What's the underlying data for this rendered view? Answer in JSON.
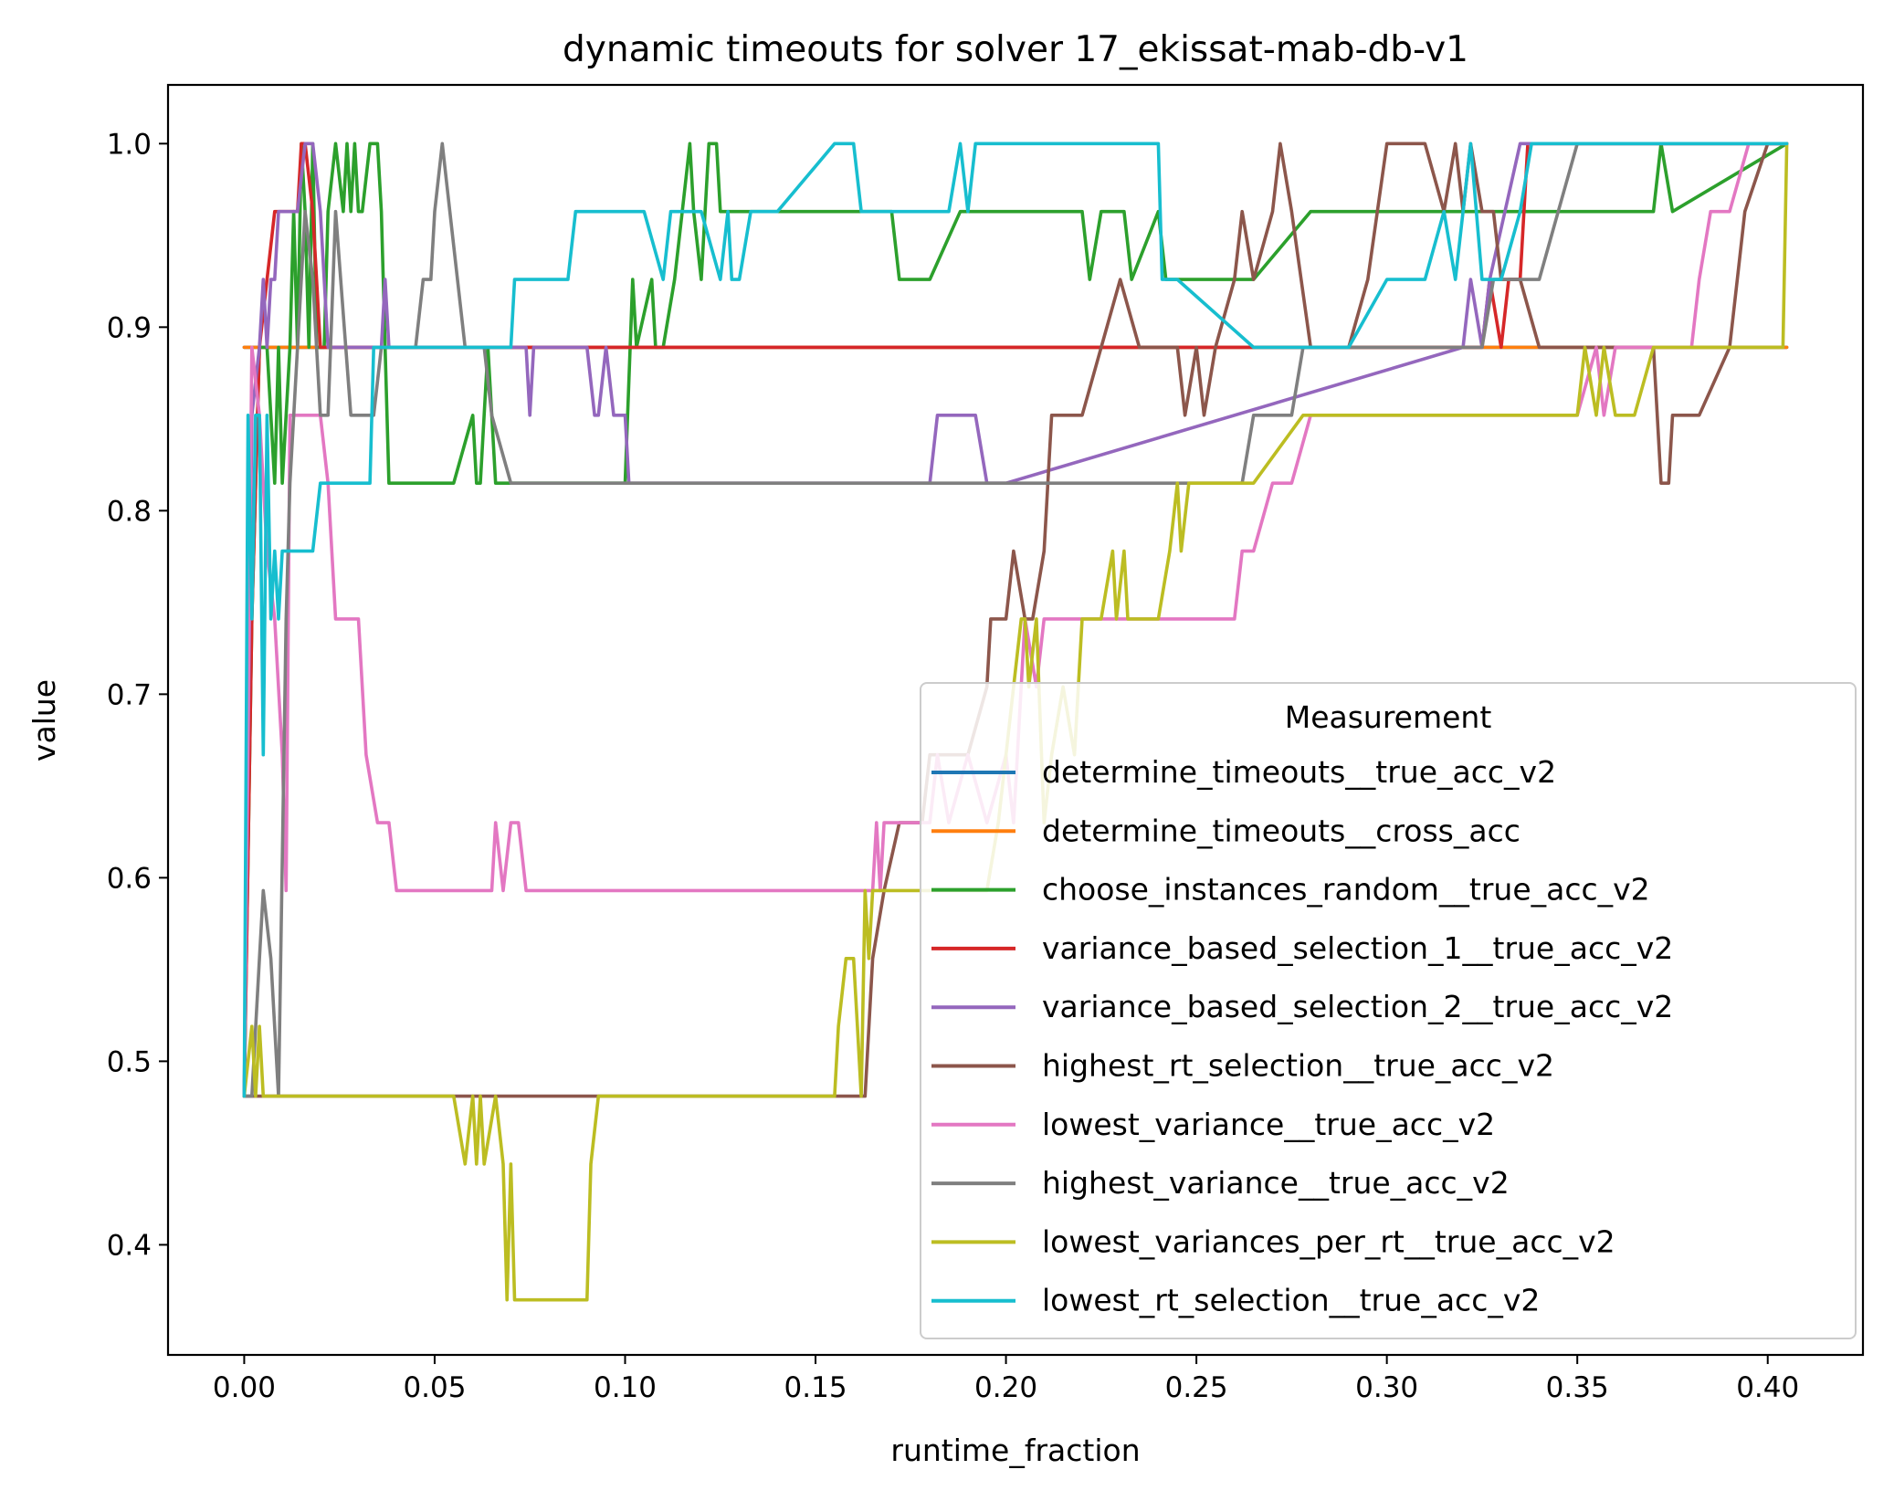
{
  "chart_data": {
    "type": "line",
    "title": "dynamic timeouts for solver 17_ekissat-mab-db-v1",
    "xlabel": "runtime_fraction",
    "ylabel": "value",
    "xlim": [
      -0.02,
      0.425
    ],
    "ylim": [
      0.34,
      1.032
    ],
    "x_ticks": [
      0.0,
      0.05,
      0.1,
      0.15,
      0.2,
      0.25,
      0.3,
      0.35,
      0.4
    ],
    "x_tick_labels": [
      "0.00",
      "0.05",
      "0.10",
      "0.15",
      "0.20",
      "0.25",
      "0.30",
      "0.35",
      "0.40"
    ],
    "y_ticks": [
      0.4,
      0.5,
      0.6,
      0.7,
      0.8,
      0.9,
      1.0
    ],
    "y_tick_labels": [
      "0.4",
      "0.5",
      "0.6",
      "0.7",
      "0.8",
      "0.9",
      "1.0"
    ],
    "grid": false,
    "legend": {
      "title": "Measurement",
      "placement": "lower-right"
    },
    "series": [
      {
        "name": "determine_timeouts__true_acc_v2",
        "color": "#1f77b4",
        "x": [
          0.0,
          0.405
        ],
        "y": [
          0.889,
          0.889
        ]
      },
      {
        "name": "determine_timeouts__cross_acc",
        "color": "#ff7f0e",
        "x": [
          0.0,
          0.405
        ],
        "y": [
          0.889,
          0.889
        ]
      },
      {
        "name": "choose_instances_random__true_acc_v2",
        "color": "#2ca02c",
        "x": [
          0.0,
          0.002,
          0.004,
          0.006,
          0.008,
          0.009,
          0.01,
          0.012,
          0.013,
          0.014,
          0.015,
          0.016,
          0.017,
          0.018,
          0.019,
          0.021,
          0.022,
          0.024,
          0.026,
          0.027,
          0.028,
          0.029,
          0.03,
          0.031,
          0.033,
          0.035,
          0.036,
          0.037,
          0.038,
          0.039,
          0.045,
          0.047,
          0.055,
          0.06,
          0.061,
          0.062,
          0.064,
          0.066,
          0.068,
          0.07,
          0.1,
          0.102,
          0.103,
          0.107,
          0.108,
          0.109,
          0.11,
          0.113,
          0.115,
          0.117,
          0.118,
          0.12,
          0.122,
          0.124,
          0.125,
          0.13,
          0.132,
          0.14,
          0.17,
          0.172,
          0.18,
          0.188,
          0.19,
          0.2,
          0.22,
          0.222,
          0.225,
          0.231,
          0.233,
          0.24,
          0.242,
          0.245,
          0.247,
          0.26,
          0.265,
          0.28,
          0.282,
          0.35,
          0.37,
          0.372,
          0.375,
          0.405
        ],
        "y": [
          0.481,
          0.741,
          0.889,
          0.889,
          0.815,
          0.889,
          0.815,
          0.889,
          0.963,
          0.889,
          1.0,
          0.963,
          0.889,
          1.0,
          0.889,
          0.889,
          0.963,
          1.0,
          0.963,
          1.0,
          0.963,
          1.0,
          0.963,
          0.963,
          1.0,
          1.0,
          0.963,
          0.889,
          0.815,
          0.815,
          0.815,
          0.815,
          0.815,
          0.852,
          0.815,
          0.815,
          0.889,
          0.815,
          0.815,
          0.815,
          0.815,
          0.926,
          0.889,
          0.926,
          0.889,
          0.889,
          0.889,
          0.926,
          0.963,
          1.0,
          0.963,
          0.926,
          1.0,
          1.0,
          0.963,
          0.963,
          0.963,
          0.963,
          0.963,
          0.926,
          0.926,
          0.963,
          0.963,
          0.963,
          0.963,
          0.926,
          0.963,
          0.963,
          0.926,
          0.963,
          0.926,
          0.926,
          0.926,
          0.926,
          0.926,
          0.963,
          0.963,
          0.963,
          0.963,
          1.0,
          0.963,
          1.0
        ]
      },
      {
        "name": "variance_based_selection_1__true_acc_v2",
        "color": "#d62728",
        "x": [
          0.0,
          0.002,
          0.004,
          0.006,
          0.008,
          0.01,
          0.012,
          0.014,
          0.015,
          0.016,
          0.018,
          0.02,
          0.022,
          0.024,
          0.3,
          0.325,
          0.327,
          0.33,
          0.332,
          0.335,
          0.337,
          0.405
        ],
        "y": [
          0.481,
          0.741,
          0.889,
          0.926,
          0.963,
          0.963,
          0.963,
          0.963,
          1.0,
          1.0,
          0.963,
          0.889,
          0.889,
          0.889,
          0.889,
          0.889,
          0.926,
          0.889,
          0.926,
          0.926,
          1.0,
          1.0
        ]
      },
      {
        "name": "variance_based_selection_2__true_acc_v2",
        "color": "#9467bd",
        "x": [
          0.0,
          0.002,
          0.004,
          0.005,
          0.006,
          0.007,
          0.008,
          0.009,
          0.012,
          0.014,
          0.016,
          0.018,
          0.02,
          0.022,
          0.036,
          0.037,
          0.038,
          0.045,
          0.074,
          0.075,
          0.076,
          0.077,
          0.09,
          0.092,
          0.093,
          0.095,
          0.097,
          0.1,
          0.101,
          0.102,
          0.18,
          0.182,
          0.192,
          0.195,
          0.2,
          0.32,
          0.322,
          0.325,
          0.327,
          0.335,
          0.405
        ],
        "y": [
          0.481,
          0.852,
          0.889,
          0.926,
          0.889,
          0.926,
          0.926,
          0.963,
          0.963,
          0.963,
          1.0,
          1.0,
          0.963,
          0.889,
          0.889,
          0.926,
          0.889,
          0.889,
          0.889,
          0.852,
          0.889,
          0.889,
          0.889,
          0.852,
          0.852,
          0.889,
          0.852,
          0.852,
          0.815,
          0.815,
          0.815,
          0.852,
          0.852,
          0.815,
          0.815,
          0.889,
          0.926,
          0.889,
          0.926,
          1.0,
          1.0
        ]
      },
      {
        "name": "highest_rt_selection__true_acc_v2",
        "color": "#8c564b",
        "x": [
          0.0,
          0.16,
          0.163,
          0.165,
          0.168,
          0.172,
          0.178,
          0.18,
          0.19,
          0.195,
          0.196,
          0.2,
          0.202,
          0.205,
          0.207,
          0.21,
          0.212,
          0.215,
          0.22,
          0.23,
          0.235,
          0.24,
          0.245,
          0.247,
          0.25,
          0.252,
          0.255,
          0.26,
          0.262,
          0.265,
          0.27,
          0.272,
          0.275,
          0.28,
          0.29,
          0.295,
          0.3,
          0.31,
          0.315,
          0.318,
          0.32,
          0.322,
          0.325,
          0.328,
          0.33,
          0.335,
          0.34,
          0.37,
          0.372,
          0.374,
          0.375,
          0.378,
          0.38,
          0.382,
          0.39,
          0.392,
          0.394,
          0.4,
          0.405
        ],
        "y": [
          0.481,
          0.481,
          0.481,
          0.556,
          0.593,
          0.63,
          0.63,
          0.667,
          0.667,
          0.704,
          0.741,
          0.741,
          0.778,
          0.741,
          0.741,
          0.778,
          0.852,
          0.852,
          0.852,
          0.926,
          0.889,
          0.889,
          0.889,
          0.852,
          0.889,
          0.852,
          0.889,
          0.926,
          0.963,
          0.926,
          0.963,
          1.0,
          0.963,
          0.889,
          0.889,
          0.926,
          1.0,
          1.0,
          0.963,
          1.0,
          0.963,
          1.0,
          0.963,
          0.963,
          0.926,
          0.926,
          0.889,
          0.889,
          0.815,
          0.815,
          0.852,
          0.852,
          0.852,
          0.852,
          0.889,
          0.926,
          0.963,
          1.0,
          1.0
        ]
      },
      {
        "name": "lowest_variance__true_acc_v2",
        "color": "#e377c2",
        "x": [
          0.0,
          0.002,
          0.004,
          0.006,
          0.008,
          0.01,
          0.011,
          0.012,
          0.014,
          0.016,
          0.018,
          0.02,
          0.022,
          0.024,
          0.03,
          0.032,
          0.035,
          0.038,
          0.04,
          0.065,
          0.066,
          0.068,
          0.07,
          0.072,
          0.074,
          0.076,
          0.165,
          0.166,
          0.167,
          0.168,
          0.17,
          0.18,
          0.182,
          0.185,
          0.19,
          0.195,
          0.2,
          0.202,
          0.205,
          0.208,
          0.21,
          0.212,
          0.215,
          0.26,
          0.262,
          0.265,
          0.27,
          0.275,
          0.28,
          0.285,
          0.35,
          0.355,
          0.357,
          0.36,
          0.37,
          0.38,
          0.382,
          0.385,
          0.39,
          0.395,
          0.405
        ],
        "y": [
          0.481,
          0.889,
          0.852,
          0.778,
          0.741,
          0.667,
          0.593,
          0.852,
          0.852,
          0.852,
          0.852,
          0.852,
          0.815,
          0.741,
          0.741,
          0.667,
          0.63,
          0.63,
          0.593,
          0.593,
          0.63,
          0.593,
          0.63,
          0.63,
          0.593,
          0.593,
          0.593,
          0.63,
          0.593,
          0.63,
          0.63,
          0.63,
          0.667,
          0.63,
          0.667,
          0.63,
          0.667,
          0.63,
          0.741,
          0.704,
          0.741,
          0.741,
          0.741,
          0.741,
          0.778,
          0.778,
          0.815,
          0.815,
          0.852,
          0.852,
          0.852,
          0.889,
          0.852,
          0.889,
          0.889,
          0.889,
          0.926,
          0.963,
          0.963,
          1.0,
          1.0
        ]
      },
      {
        "name": "highest_variance__true_acc_v2",
        "color": "#7f7f7f",
        "x": [
          0.0,
          0.002,
          0.004,
          0.005,
          0.007,
          0.009,
          0.011,
          0.012,
          0.014,
          0.016,
          0.018,
          0.02,
          0.022,
          0.024,
          0.028,
          0.03,
          0.034,
          0.036,
          0.045,
          0.047,
          0.049,
          0.05,
          0.052,
          0.054,
          0.058,
          0.063,
          0.065,
          0.07,
          0.2,
          0.21,
          0.215,
          0.262,
          0.265,
          0.275,
          0.278,
          0.3,
          0.32,
          0.325,
          0.328,
          0.33,
          0.335,
          0.34,
          0.345,
          0.35,
          0.405
        ],
        "y": [
          0.481,
          0.481,
          0.556,
          0.593,
          0.556,
          0.481,
          0.741,
          0.815,
          0.889,
          0.963,
          0.926,
          0.852,
          0.852,
          0.963,
          0.852,
          0.852,
          0.852,
          0.889,
          0.889,
          0.926,
          0.926,
          0.963,
          1.0,
          0.963,
          0.889,
          0.889,
          0.852,
          0.815,
          0.815,
          0.815,
          0.815,
          0.815,
          0.852,
          0.852,
          0.889,
          0.889,
          0.889,
          0.889,
          0.926,
          0.926,
          0.926,
          0.926,
          0.963,
          1.0,
          1.0
        ]
      },
      {
        "name": "lowest_variances_per_rt__true_acc_v2",
        "color": "#bcbd22",
        "x": [
          0.0,
          0.002,
          0.003,
          0.004,
          0.005,
          0.055,
          0.058,
          0.06,
          0.061,
          0.062,
          0.063,
          0.066,
          0.068,
          0.069,
          0.07,
          0.071,
          0.09,
          0.091,
          0.093,
          0.095,
          0.155,
          0.156,
          0.158,
          0.16,
          0.161,
          0.162,
          0.163,
          0.164,
          0.165,
          0.166,
          0.168,
          0.17,
          0.195,
          0.198,
          0.2,
          0.202,
          0.204,
          0.205,
          0.206,
          0.208,
          0.21,
          0.212,
          0.215,
          0.218,
          0.22,
          0.225,
          0.228,
          0.229,
          0.231,
          0.232,
          0.24,
          0.243,
          0.245,
          0.246,
          0.248,
          0.25,
          0.265,
          0.278,
          0.28,
          0.35,
          0.352,
          0.355,
          0.357,
          0.36,
          0.365,
          0.37,
          0.373,
          0.375,
          0.38,
          0.39,
          0.404,
          0.405
        ],
        "y": [
          0.481,
          0.519,
          0.481,
          0.519,
          0.481,
          0.481,
          0.444,
          0.481,
          0.444,
          0.481,
          0.444,
          0.481,
          0.444,
          0.37,
          0.444,
          0.37,
          0.37,
          0.444,
          0.481,
          0.481,
          0.481,
          0.519,
          0.556,
          0.556,
          0.519,
          0.481,
          0.593,
          0.556,
          0.593,
          0.593,
          0.593,
          0.593,
          0.593,
          0.63,
          0.667,
          0.704,
          0.741,
          0.741,
          0.704,
          0.741,
          0.63,
          0.667,
          0.704,
          0.667,
          0.741,
          0.741,
          0.778,
          0.741,
          0.778,
          0.741,
          0.741,
          0.778,
          0.815,
          0.778,
          0.815,
          0.815,
          0.815,
          0.852,
          0.852,
          0.852,
          0.889,
          0.852,
          0.889,
          0.852,
          0.852,
          0.889,
          0.889,
          0.889,
          0.889,
          0.889,
          0.889,
          1.0
        ]
      },
      {
        "name": "lowest_rt_selection__true_acc_v2",
        "color": "#17becf",
        "x": [
          0.0,
          0.001,
          0.002,
          0.003,
          0.004,
          0.005,
          0.006,
          0.007,
          0.008,
          0.009,
          0.01,
          0.015,
          0.018,
          0.02,
          0.021,
          0.033,
          0.034,
          0.07,
          0.071,
          0.078,
          0.085,
          0.087,
          0.105,
          0.11,
          0.112,
          0.113,
          0.12,
          0.125,
          0.127,
          0.128,
          0.13,
          0.133,
          0.135,
          0.14,
          0.155,
          0.157,
          0.16,
          0.162,
          0.165,
          0.185,
          0.188,
          0.19,
          0.192,
          0.24,
          0.241,
          0.245,
          0.265,
          0.28,
          0.29,
          0.3,
          0.31,
          0.315,
          0.318,
          0.32,
          0.322,
          0.325,
          0.33,
          0.335,
          0.338,
          0.405
        ],
        "y": [
          0.481,
          0.852,
          0.741,
          0.852,
          0.852,
          0.667,
          0.852,
          0.741,
          0.778,
          0.741,
          0.778,
          0.778,
          0.778,
          0.815,
          0.815,
          0.815,
          0.889,
          0.889,
          0.926,
          0.926,
          0.926,
          0.963,
          0.963,
          0.926,
          0.963,
          0.963,
          0.963,
          0.926,
          0.963,
          0.926,
          0.926,
          0.963,
          0.963,
          0.963,
          1.0,
          1.0,
          1.0,
          0.963,
          0.963,
          0.963,
          1.0,
          0.963,
          1.0,
          1.0,
          0.926,
          0.926,
          0.889,
          0.889,
          0.889,
          0.926,
          0.926,
          0.963,
          0.926,
          0.963,
          1.0,
          0.926,
          0.926,
          0.963,
          1.0,
          1.0
        ]
      }
    ]
  }
}
